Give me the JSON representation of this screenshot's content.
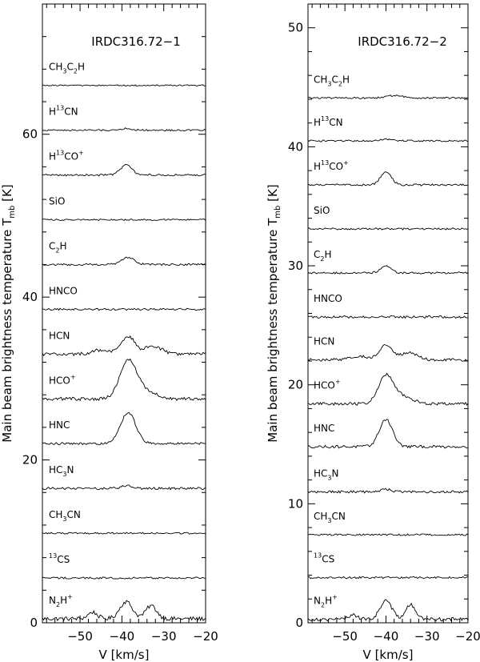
{
  "chart_data": [
    {
      "type": "line",
      "title": "IRDC316.72−1",
      "xlabel": "V [km/s]",
      "ylabel": "Main beam brightness temperature",
      "ylabel_T": "T",
      "ylabel_sub": "mb",
      "ylabel_unit": "[K]",
      "xlim": [
        -59,
        -20
      ],
      "ylim": [
        0,
        76
      ],
      "xticks": [
        -50,
        -40,
        -30,
        -20
      ],
      "xtick_labels": [
        "−50",
        "−40",
        "−30",
        "−20"
      ],
      "yticks": [
        0,
        20,
        40,
        60
      ],
      "series": [
        {
          "name": "N2H+",
          "label": "N",
          "sub": "2",
          "mid": "H",
          "sup": "+",
          "post": "",
          "baseline": 0.5,
          "noise": 0.25,
          "peaks": [
            {
              "v": -39,
              "a": 2.1,
              "w": 1.5
            },
            {
              "v": -33,
              "a": 1.6,
              "w": 1.3
            },
            {
              "v": -47,
              "a": 0.8,
              "w": 1.1
            }
          ]
        },
        {
          "name": "13CS",
          "label": "",
          "sub": "",
          "mid": "",
          "sup": "13",
          "post": "CS",
          "baseline": 5.5,
          "noise": 0.12,
          "peaks": []
        },
        {
          "name": "CH3CN",
          "label": "CH",
          "sub": "3",
          "mid": "CN",
          "sup": "",
          "post": "",
          "baseline": 11,
          "noise": 0.1,
          "peaks": []
        },
        {
          "name": "HC3N",
          "label": "HC",
          "sub": "3",
          "mid": "N",
          "sup": "",
          "post": "",
          "baseline": 16.5,
          "noise": 0.15,
          "peaks": [
            {
              "v": -39,
              "a": 0.3,
              "w": 1.5
            }
          ]
        },
        {
          "name": "HNC",
          "label": "HNC",
          "sub": "",
          "mid": "",
          "sup": "",
          "post": "",
          "baseline": 22,
          "noise": 0.15,
          "peaks": [
            {
              "v": -38.5,
              "a": 3.8,
              "w": 1.8
            }
          ]
        },
        {
          "name": "HCO+",
          "label": "HCO",
          "sub": "",
          "mid": "",
          "sup": "+",
          "post": "",
          "baseline": 27.5,
          "noise": 0.2,
          "peaks": [
            {
              "v": -38.5,
              "a": 4.6,
              "w": 2.0
            },
            {
              "v": -34,
              "a": 0.9,
              "w": 2.5
            }
          ]
        },
        {
          "name": "HCN",
          "label": "HCN",
          "sub": "",
          "mid": "",
          "sup": "",
          "post": "",
          "baseline": 33,
          "noise": 0.2,
          "peaks": [
            {
              "v": -38.5,
              "a": 2.2,
              "w": 1.6
            },
            {
              "v": -32.5,
              "a": 1.0,
              "w": 2.0
            },
            {
              "v": -45,
              "a": 0.5,
              "w": 2.0
            }
          ]
        },
        {
          "name": "HNCO",
          "label": "HNCO",
          "sub": "",
          "mid": "",
          "sup": "",
          "post": "",
          "baseline": 38.5,
          "noise": 0.12,
          "peaks": []
        },
        {
          "name": "C2H",
          "label": "C",
          "sub": "2",
          "mid": "H",
          "sup": "",
          "post": "",
          "baseline": 44,
          "noise": 0.12,
          "peaks": [
            {
              "v": -38.5,
              "a": 0.9,
              "w": 1.5
            }
          ]
        },
        {
          "name": "SiO",
          "label": "SiO",
          "sub": "",
          "mid": "",
          "sup": "",
          "post": "",
          "baseline": 49.5,
          "noise": 0.1,
          "peaks": []
        },
        {
          "name": "H13CO+",
          "label": "H",
          "sub": "",
          "mid": "",
          "sup": "13",
          "post": "CO",
          "sup2": "+",
          "baseline": 55,
          "noise": 0.12,
          "peaks": [
            {
              "v": -39,
              "a": 1.2,
              "w": 1.4
            }
          ]
        },
        {
          "name": "H13CN",
          "label": "H",
          "sub": "",
          "mid": "",
          "sup": "13",
          "post": "CN",
          "baseline": 60.5,
          "noise": 0.1,
          "peaks": [
            {
              "v": -39,
              "a": 0.2,
              "w": 1.5
            }
          ]
        },
        {
          "name": "CH3C2H",
          "label": "CH",
          "sub": "3",
          "mid": "C",
          "sup": "",
          "post": "",
          "sub2": "2",
          "post2": "H",
          "baseline": 66,
          "noise": 0.08,
          "peaks": []
        }
      ]
    },
    {
      "type": "line",
      "title": "IRDC316.72−2",
      "xlabel": "V [km/s]",
      "ylabel": "Main beam brightness temperature",
      "ylabel_T": "T",
      "ylabel_sub": "mb",
      "ylabel_unit": "[K]",
      "xlim": [
        -59,
        -20
      ],
      "ylim": [
        0,
        52
      ],
      "xticks": [
        -50,
        -40,
        -30,
        -20
      ],
      "xtick_labels": [
        "−50",
        "−40",
        "−30",
        "−20"
      ],
      "yticks": [
        0,
        10,
        20,
        30,
        40,
        50
      ],
      "series": [
        {
          "name": "N2H+",
          "label": "N",
          "sub": "2",
          "mid": "H",
          "sup": "+",
          "post": "",
          "baseline": 0.3,
          "noise": 0.15,
          "peaks": [
            {
              "v": -40,
              "a": 1.6,
              "w": 1.4
            },
            {
              "v": -34,
              "a": 1.2,
              "w": 1.2
            },
            {
              "v": -48,
              "a": 0.4,
              "w": 1.0
            }
          ]
        },
        {
          "name": "13CS",
          "label": "",
          "sub": "",
          "mid": "",
          "sup": "13",
          "post": "CS",
          "baseline": 3.8,
          "noise": 0.08,
          "peaks": []
        },
        {
          "name": "CH3CN",
          "label": "CH",
          "sub": "3",
          "mid": "CN",
          "sup": "",
          "post": "",
          "baseline": 7.4,
          "noise": 0.07,
          "peaks": []
        },
        {
          "name": "HC3N",
          "label": "HC",
          "sub": "3",
          "mid": "N",
          "sup": "",
          "post": "",
          "baseline": 11,
          "noise": 0.1,
          "peaks": [
            {
              "v": -40,
              "a": 0.2,
              "w": 1.5
            }
          ]
        },
        {
          "name": "HNC",
          "label": "HNC",
          "sub": "",
          "mid": "",
          "sup": "",
          "post": "",
          "baseline": 14.8,
          "noise": 0.12,
          "peaks": [
            {
              "v": -40,
              "a": 2.3,
              "w": 1.6
            }
          ]
        },
        {
          "name": "HCO+",
          "label": "HCO",
          "sub": "",
          "mid": "",
          "sup": "+",
          "post": "",
          "baseline": 18.4,
          "noise": 0.12,
          "peaks": [
            {
              "v": -40,
              "a": 2.3,
              "w": 1.8
            },
            {
              "v": -36,
              "a": 0.6,
              "w": 2.5
            }
          ]
        },
        {
          "name": "HCN",
          "label": "HCN",
          "sub": "",
          "mid": "",
          "sup": "",
          "post": "",
          "baseline": 22.1,
          "noise": 0.12,
          "peaks": [
            {
              "v": -40,
              "a": 1.3,
              "w": 1.5
            },
            {
              "v": -34.5,
              "a": 0.6,
              "w": 2.0
            },
            {
              "v": -46.5,
              "a": 0.3,
              "w": 2.0
            }
          ]
        },
        {
          "name": "HNCO",
          "label": "HNCO",
          "sub": "",
          "mid": "",
          "sup": "",
          "post": "",
          "baseline": 25.7,
          "noise": 0.1,
          "peaks": []
        },
        {
          "name": "C2H",
          "label": "C",
          "sub": "2",
          "mid": "H",
          "sup": "",
          "post": "",
          "baseline": 29.4,
          "noise": 0.08,
          "peaks": [
            {
              "v": -40,
              "a": 0.6,
              "w": 1.3
            }
          ]
        },
        {
          "name": "SiO",
          "label": "SiO",
          "sub": "",
          "mid": "",
          "sup": "",
          "post": "",
          "baseline": 33.1,
          "noise": 0.08,
          "peaks": []
        },
        {
          "name": "H13CO+",
          "label": "H",
          "sub": "",
          "mid": "",
          "sup": "13",
          "post": "CO",
          "sup2": "+",
          "baseline": 36.8,
          "noise": 0.08,
          "peaks": [
            {
              "v": -40,
              "a": 1.1,
              "w": 1.3
            }
          ]
        },
        {
          "name": "H13CN",
          "label": "H",
          "sub": "",
          "mid": "",
          "sup": "13",
          "post": "CN",
          "baseline": 40.5,
          "noise": 0.07,
          "peaks": [
            {
              "v": -40,
              "a": 0.15,
              "w": 1.5
            }
          ]
        },
        {
          "name": "CH3C2H",
          "label": "CH",
          "sub": "3",
          "mid": "C",
          "sup": "",
          "post": "",
          "sub2": "2",
          "post2": "H",
          "baseline": 44.1,
          "noise": 0.07,
          "peaks": [
            {
              "v": -38,
              "a": 0.2,
              "w": 2.0
            }
          ]
        }
      ]
    }
  ]
}
